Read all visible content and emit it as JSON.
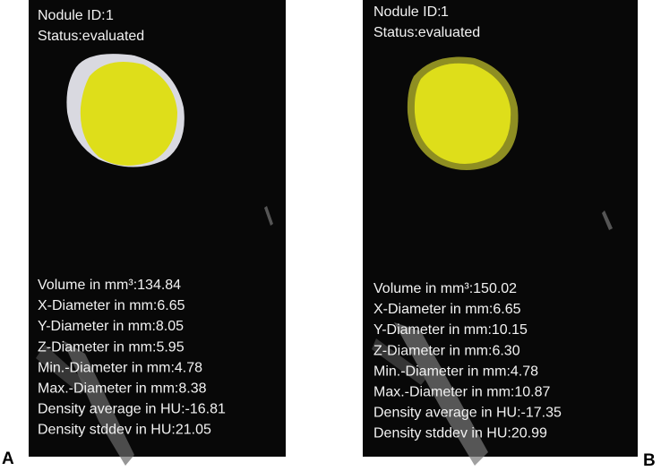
{
  "panels": [
    {
      "label": "A",
      "nodule_id_label": "Nodule ID:",
      "nodule_id": "1",
      "status": "Status:evaluated",
      "measurements": [
        "Volume in mm³:134.84",
        "X-Diameter in mm:6.65",
        "Y-Diameter in mm:8.05",
        "Z-Diameter in mm:5.95",
        "Min.-Diameter in mm:4.78",
        "Max.-Diameter in mm:8.38",
        "Density average in HU:-16.81",
        "Density stddev in HU:21.05"
      ]
    },
    {
      "label": "B",
      "nodule_id_label": "Nodule ID:",
      "nodule_id": "1",
      "status": "Status:evaluated",
      "measurements": [
        "Volume in mm³:150.02",
        "X-Diameter in mm:6.65",
        "Y-Diameter in mm:10.15",
        "Z-Diameter in mm:6.30",
        "Min.-Diameter in mm:4.78",
        "Max.-Diameter in mm:10.87",
        "Density average in HU:-17.35",
        "Density stddev in HU:20.99"
      ]
    }
  ]
}
